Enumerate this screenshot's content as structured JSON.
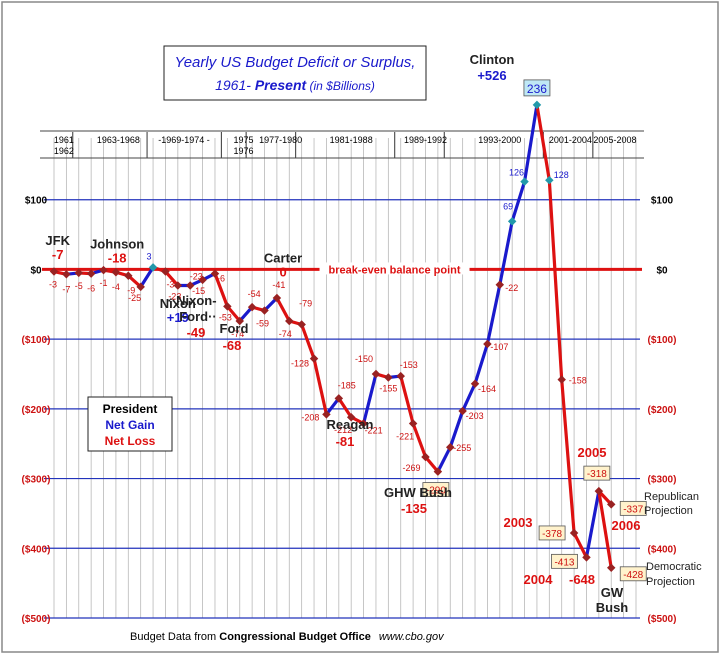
{
  "chart_data": {
    "type": "line",
    "title_line1": "Yearly US Budget Deficit or Surplus,",
    "title_line2_a": "1961- ",
    "title_line2_b": "Present",
    "title_line2_c": " (in $Billions)",
    "source_prefix": "Budget Data from ",
    "source_org": "Congressional Budget Office",
    "source_url": "www.cbo.gov",
    "xlim": [
      1961,
      2008
    ],
    "ylim": [
      -500,
      200
    ],
    "y_ticks": [
      {
        "value": 100,
        "label": "$100"
      },
      {
        "value": 0,
        "label": "$0"
      },
      {
        "value": -100,
        "label": "($100)"
      },
      {
        "value": -200,
        "label": "($200)"
      },
      {
        "value": -300,
        "label": "($300)"
      },
      {
        "value": -400,
        "label": "($400)"
      },
      {
        "value": -500,
        "label": "($500)"
      }
    ],
    "break_even_label": "break-even balance point",
    "terms": [
      {
        "label": "1961",
        "x": 1961.8,
        "row": 0
      },
      {
        "label": "1962",
        "x": 1961.8,
        "row": 1
      },
      {
        "label": "1963-1968",
        "x": 1966.2,
        "row": 0
      },
      {
        "label": "-1969-1974 -",
        "x": 1971.5,
        "row": 0
      },
      {
        "label": "1975",
        "x": 1976.3,
        "row": 0
      },
      {
        "label": "1976",
        "x": 1976.3,
        "row": 1
      },
      {
        "label": "1977-1980",
        "x": 1979.3,
        "row": 0
      },
      {
        "label": "1981-1988",
        "x": 1985,
        "row": 0
      },
      {
        "label": "1989-1992",
        "x": 1991,
        "row": 0
      },
      {
        "label": "1993-2000",
        "x": 1997,
        "row": 0
      },
      {
        "label": "2001-2004",
        "x": 2002.7,
        "row": 0
      },
      {
        "label": "2005-2008",
        "x": 2006.3,
        "row": 0
      }
    ],
    "term_dividers": [
      1963,
      1969,
      1975,
      1977,
      1981,
      1989,
      1993,
      2001,
      2005
    ],
    "series": [
      {
        "x": 1961,
        "value": -3,
        "label": "-3",
        "dx": -1,
        "dy": 16
      },
      {
        "x": 1962,
        "value": -7,
        "label": "-7",
        "dx": 0,
        "dy": 18
      },
      {
        "x": 1963,
        "value": -5,
        "label": "-5",
        "dx": 0,
        "dy": 16
      },
      {
        "x": 1964,
        "value": -6,
        "label": "-6",
        "dx": 0,
        "dy": 18
      },
      {
        "x": 1965,
        "value": -1,
        "label": "-1",
        "dx": 0,
        "dy": 16
      },
      {
        "x": 1966,
        "value": -4,
        "label": "-4",
        "dx": 0,
        "dy": 18
      },
      {
        "x": 1967,
        "value": -9,
        "label": "-9",
        "dx": 3,
        "dy": 18
      },
      {
        "x": 1968,
        "value": -25,
        "label": "-25",
        "dx": -6,
        "dy": 14
      },
      {
        "x": 1969,
        "value": 3,
        "label": "3",
        "dx": -4,
        "dy": -8
      },
      {
        "x": 1970,
        "value": -3,
        "label": "-3",
        "dx": 5,
        "dy": 16
      },
      {
        "x": 1971,
        "value": -23,
        "label": "-23",
        "dx": -3,
        "dy": 14
      },
      {
        "x": 1972,
        "value": -23,
        "label": "-23",
        "dx": 6,
        "dy": -6
      },
      {
        "x": 1973,
        "value": -15,
        "label": "-15",
        "dx": -4,
        "dy": 14
      },
      {
        "x": 1974,
        "value": -6,
        "label": "-6",
        "dx": 6,
        "dy": 8
      },
      {
        "x": 1975,
        "value": -53,
        "label": "-53",
        "dx": -2,
        "dy": 14
      },
      {
        "x": 1976,
        "value": -74,
        "label": "-74",
        "dx": -2,
        "dy": 16
      },
      {
        "x": 1977,
        "value": -54,
        "label": "-54",
        "dx": 2,
        "dy": -10
      },
      {
        "x": 1978,
        "value": -59,
        "label": "-59",
        "dx": -2,
        "dy": 16
      },
      {
        "x": 1979,
        "value": -41,
        "label": "-41",
        "dx": 2,
        "dy": -10
      },
      {
        "x": 1980,
        "value": -74,
        "label": "-74",
        "dx": -4,
        "dy": 16
      },
      {
        "x": 1981,
        "value": -79,
        "label": "-79",
        "dx": 4,
        "dy": -18
      },
      {
        "x": 1982,
        "value": -128,
        "label": "-128",
        "dx": -14,
        "dy": 8
      },
      {
        "x": 1983,
        "value": -208,
        "label": "-208",
        "dx": -16,
        "dy": 6
      },
      {
        "x": 1984,
        "value": -185,
        "label": "-185",
        "dx": 8,
        "dy": -10
      },
      {
        "x": 1985,
        "value": -212,
        "label": "-212",
        "dx": -8,
        "dy": 16
      },
      {
        "x": 1986,
        "value": -221,
        "label": "-221",
        "dx": 10,
        "dy": 10
      },
      {
        "x": 1987,
        "value": -150,
        "label": "-150",
        "dx": -12,
        "dy": -12
      },
      {
        "x": 1988,
        "value": -155,
        "label": "-155",
        "dx": 0,
        "dy": 14
      },
      {
        "x": 1989,
        "value": -153,
        "label": "-153",
        "dx": 8,
        "dy": -8
      },
      {
        "x": 1990,
        "value": -221,
        "label": "-221",
        "dx": -8,
        "dy": 16
      },
      {
        "x": 1991,
        "value": -269,
        "label": "-269",
        "dx": -14,
        "dy": 14
      },
      {
        "x": 1992,
        "value": -290,
        "label": "-290",
        "dx": -2,
        "dy": 22,
        "boxed": true
      },
      {
        "x": 1993,
        "value": -255,
        "label": "-255",
        "dx": 12,
        "dy": 4
      },
      {
        "x": 1994,
        "value": -203,
        "label": "-203",
        "dx": 12,
        "dy": 8
      },
      {
        "x": 1995,
        "value": -164,
        "label": "-164",
        "dx": 12,
        "dy": 8
      },
      {
        "x": 1996,
        "value": -107,
        "label": "-107",
        "dx": 12,
        "dy": 6
      },
      {
        "x": 1997,
        "value": -22,
        "label": "-22",
        "dx": 12,
        "dy": 6
      },
      {
        "x": 1998,
        "value": 69,
        "label": "69",
        "dx": -4,
        "dy": -12
      },
      {
        "x": 1999,
        "value": 126,
        "label": "126",
        "dx": -8,
        "dy": -6
      },
      {
        "x": 2000,
        "value": 236,
        "label": "236",
        "dx": 0,
        "dy": -12,
        "boxed": true,
        "big": true
      },
      {
        "x": 2001,
        "value": 128,
        "label": "128",
        "dx": 12,
        "dy": -2
      },
      {
        "x": 2002,
        "value": -158,
        "label": "-158",
        "dx": 16,
        "dy": 4
      },
      {
        "x": 2003,
        "value": -378,
        "label": "-378",
        "dx": -22,
        "dy": 4,
        "boxed": true
      },
      {
        "x": 2004,
        "value": -413,
        "label": "-413",
        "dx": -22,
        "dy": 8,
        "boxed": true
      },
      {
        "x": 2005,
        "value": -318,
        "label": "-318",
        "dx": -2,
        "dy": -14,
        "boxed": true
      },
      {
        "x": 2006,
        "value": -337,
        "label": "-337",
        "dx": 22,
        "dy": 8,
        "boxed": true
      },
      {
        "x": 2006,
        "value": -428,
        "label": "-428",
        "dx": 22,
        "dy": 10,
        "boxed": true
      }
    ],
    "path_main_upto": 45,
    "projection_split_from": 44,
    "presidents": [
      {
        "name": "JFK",
        "net": "-7",
        "gain": false,
        "nx": 1961.3,
        "ny": 35
      },
      {
        "name": "Johnson",
        "net": "-18",
        "gain": false,
        "nx": 1966.1,
        "ny": 30
      },
      {
        "name": "Nixon",
        "net": "+19",
        "gain": true,
        "nx": 1971.0,
        "ny": -55
      },
      {
        "name": "Carter",
        "net": "0",
        "gain": false,
        "nx": 1979.5,
        "ny": 10
      }
    ],
    "extra_labels": {
      "nixon_ford": "··Nixon-",
      "ford_dots": "Ford··",
      "nixon_ford_net": "-49",
      "ford": "Ford",
      "ford_net": "-68",
      "reagan": "Reagan",
      "reagan_net": "-81",
      "ghw": "GHW Bush",
      "ghw_net": "-135",
      "clinton": "Clinton",
      "clinton_net": "+526",
      "gw": "GW",
      "gw2": "Bush",
      "year_2003": "2003",
      "year_2004": "2004",
      "year_2005": "2005",
      "year_2006": "2006",
      "gw_net": "-648",
      "rep_proj_1": "Republican",
      "rep_proj_2": "Projection",
      "dem_proj_1": "Democratic",
      "dem_proj_2": "Projection"
    },
    "legend": {
      "title": "President",
      "gain": "Net Gain",
      "loss": "Net Loss",
      "placement": "left-middle"
    },
    "colors": {
      "gain": "#1a1acc",
      "loss": "#dd1111",
      "grid": "#2233bb",
      "zero": "#dd1111",
      "boxed_fill": "#fff2cc",
      "peak_fill": "#bfe8f5"
    }
  }
}
